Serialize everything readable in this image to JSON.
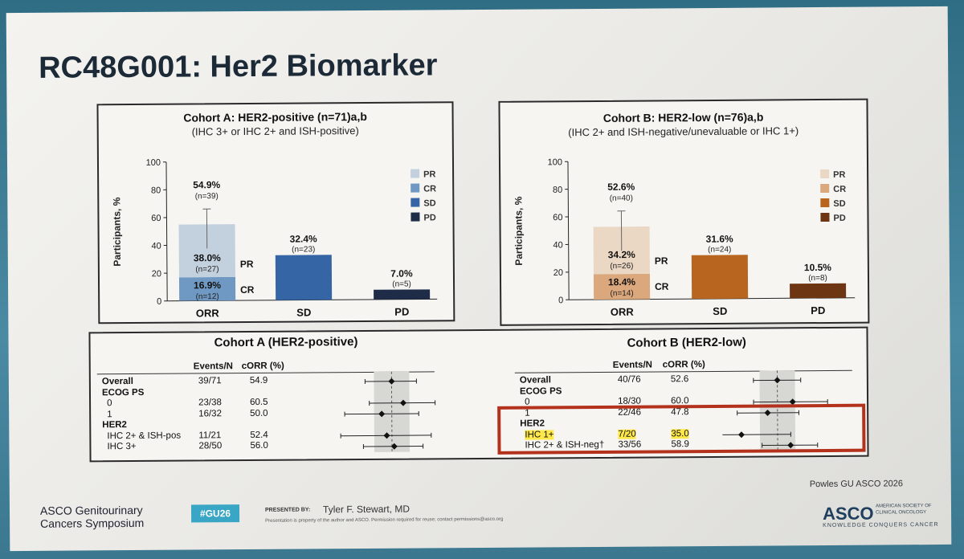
{
  "slide": {
    "title": "RC48G001: Her2 Biomarker",
    "source_note": "Powles GU ASCO 2026",
    "symposium_line1": "ASCO Genitourinary",
    "symposium_line2": "Cancers Symposium",
    "hashtag": "#GU26",
    "presented_by_label": "PRESENTED BY:",
    "presenter": "Tyler F. Stewart, MD",
    "disclaimer": "Presentation is property of the author and ASCO. Permission required for reuse; contact permissions@asco.org",
    "asco_logo": "ASCO",
    "asco_mini": "AMERICAN SOCIETY OF CLINICAL ONCOLOGY",
    "asco_tagline": "KNOWLEDGE CONQUERS CANCER"
  },
  "chart_data": [
    {
      "type": "bar",
      "title": "Cohort A: HER2-positive (n=71)a,b",
      "subtitle": "(IHC 3+ or IHC 2+ and ISH-positive)",
      "ylabel": "Participants, %",
      "ylim": [
        0,
        100
      ],
      "yticks": [
        0,
        20,
        40,
        60,
        80,
        100
      ],
      "categories": [
        "ORR",
        "SD",
        "PD"
      ],
      "legend": [
        "PR",
        "CR",
        "SD",
        "PD"
      ],
      "colors": {
        "PR": "#c3d1df",
        "CR": "#6f98c3",
        "SD": "#3565a4",
        "PD": "#1e2c48"
      },
      "orr_total": {
        "value": 54.9,
        "label": "54.9%",
        "n": "(n=39)",
        "error_high": 66
      },
      "segments": [
        {
          "category": "ORR",
          "name": "CR",
          "value": 16.9,
          "label": "16.9%",
          "n": "(n=12)",
          "side_label": "CR"
        },
        {
          "category": "ORR",
          "name": "PR",
          "value": 38.0,
          "label": "38.0%",
          "n": "(n=27)",
          "side_label": "PR"
        },
        {
          "category": "SD",
          "name": "SD",
          "value": 32.4,
          "label": "32.4%",
          "n": "(n=23)"
        },
        {
          "category": "PD",
          "name": "PD",
          "value": 7.0,
          "label": "7.0%",
          "n": "(n=5)"
        }
      ]
    },
    {
      "type": "bar",
      "title": "Cohort B: HER2-low (n=76)a,b",
      "subtitle": "(IHC 2+ and ISH-negative/unevaluable or IHC 1+)",
      "ylabel": "Participants, %",
      "ylim": [
        0,
        100
      ],
      "yticks": [
        0,
        20,
        40,
        60,
        80,
        100
      ],
      "categories": [
        "ORR",
        "SD",
        "PD"
      ],
      "legend": [
        "PR",
        "CR",
        "SD",
        "PD"
      ],
      "colors": {
        "PR": "#ead7c4",
        "CR": "#dba77c",
        "SD": "#b8661f",
        "PD": "#6e3512"
      },
      "orr_total": {
        "value": 52.6,
        "label": "52.6%",
        "n": "(n=40)",
        "error_high": 64
      },
      "segments": [
        {
          "category": "ORR",
          "name": "CR",
          "value": 18.4,
          "label": "18.4%",
          "n": "(n=14)",
          "side_label": "CR"
        },
        {
          "category": "ORR",
          "name": "PR",
          "value": 34.2,
          "label": "34.2%",
          "n": "(n=26)",
          "side_label": "PR"
        },
        {
          "category": "SD",
          "name": "SD",
          "value": 31.6,
          "label": "31.6%",
          "n": "(n=24)"
        },
        {
          "category": "PD",
          "name": "PD",
          "value": 10.5,
          "label": "10.5%",
          "n": "(n=8)"
        }
      ]
    }
  ],
  "forest": [
    {
      "title": "Cohort A (HER2-positive)",
      "col_events": "Events/N",
      "col_corr": "cORR (%)",
      "overall_est": 54.9,
      "rows": [
        {
          "label": "Overall",
          "bold": true,
          "events": "39/71",
          "corr": "54.9",
          "est": 54.9,
          "lo": 42,
          "hi": 67
        },
        {
          "label": "ECOG PS",
          "bold": true,
          "events": "",
          "corr": ""
        },
        {
          "label": "0",
          "bold": false,
          "events": "23/38",
          "corr": "60.5",
          "est": 60.5,
          "lo": 44,
          "hi": 76
        },
        {
          "label": "1",
          "bold": false,
          "events": "16/32",
          "corr": "50.0",
          "est": 50.0,
          "lo": 32,
          "hi": 68
        },
        {
          "label": "HER2",
          "bold": true,
          "events": "",
          "corr": ""
        },
        {
          "label": "IHC 2+ & ISH-pos",
          "bold": false,
          "events": "11/21",
          "corr": "52.4",
          "est": 52.4,
          "lo": 30,
          "hi": 74
        },
        {
          "label": "IHC 3+",
          "bold": false,
          "events": "28/50",
          "corr": "56.0",
          "est": 56.0,
          "lo": 41,
          "hi": 70
        }
      ]
    },
    {
      "title": "Cohort B (HER2-low)",
      "col_events": "Events/N",
      "col_corr": "cORR (%)",
      "overall_est": 52.6,
      "rows": [
        {
          "label": "Overall",
          "bold": true,
          "events": "40/76",
          "corr": "52.6",
          "est": 52.6,
          "lo": 41,
          "hi": 64
        },
        {
          "label": "ECOG PS",
          "bold": true,
          "events": "",
          "corr": ""
        },
        {
          "label": "0",
          "bold": false,
          "events": "18/30",
          "corr": "60.0",
          "est": 60.0,
          "lo": 41,
          "hi": 77
        },
        {
          "label": "1",
          "bold": false,
          "events": "22/46",
          "corr": "47.8",
          "est": 47.8,
          "lo": 33,
          "hi": 63
        },
        {
          "label": "HER2",
          "bold": true,
          "events": "",
          "corr": ""
        },
        {
          "label": "IHC 1+",
          "bold": false,
          "events": "7/20",
          "corr": "35.0",
          "est": 35.0,
          "lo": 15,
          "hi": 59,
          "highlight": true
        },
        {
          "label": "IHC 2+ & ISH-neg†",
          "bold": false,
          "events": "33/56",
          "corr": "58.9",
          "est": 58.9,
          "lo": 45,
          "hi": 72
        }
      ]
    }
  ]
}
